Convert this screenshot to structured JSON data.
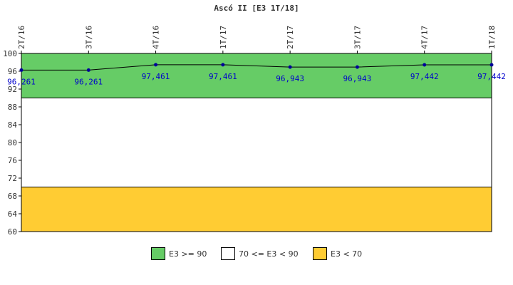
{
  "chart_data": {
    "type": "line",
    "title": "Ascó II [E3 1T/18]",
    "categories": [
      "2T/16",
      "3T/16",
      "4T/16",
      "1T/17",
      "2T/17",
      "3T/17",
      "4T/17",
      "1T/18"
    ],
    "series": [
      {
        "name": "",
        "values": [
          96.261,
          96.261,
          97.461,
          97.461,
          96.943,
          96.943,
          97.442,
          97.442
        ]
      }
    ],
    "data_labels": [
      "96,261",
      "96,261",
      "97,461",
      "97,461",
      "96,943",
      "96,943",
      "97,442",
      "97,442"
    ],
    "ylim": [
      60,
      100
    ],
    "yticks": [
      60,
      64,
      68,
      72,
      76,
      80,
      84,
      88,
      92,
      96,
      100
    ],
    "bands": [
      {
        "label": "E3 >= 90",
        "from": 90,
        "to": 100,
        "color": "#66cc66"
      },
      {
        "label": "70 <= E3 < 90",
        "from": 70,
        "to": 90,
        "color": "#ffffff"
      },
      {
        "label": "E3 < 70",
        "from": 60,
        "to": 70,
        "color": "#ffcc33"
      }
    ],
    "line_color": "#000000",
    "marker_color": "#000099",
    "label_color": "#0000cc",
    "xlabel": "",
    "ylabel": "",
    "grid": false,
    "legend": "bottom"
  }
}
